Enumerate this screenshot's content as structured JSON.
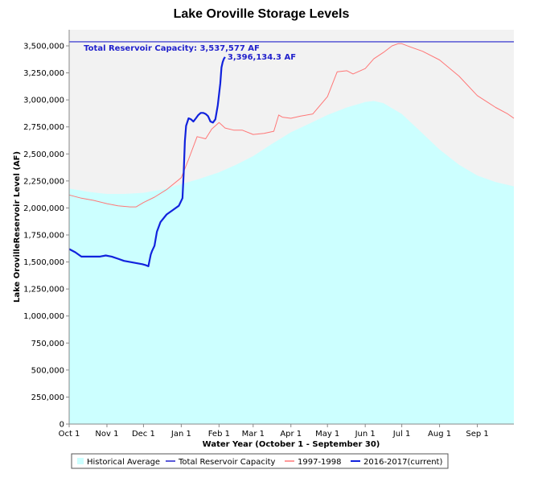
{
  "chart_data": {
    "type": "area",
    "title": "Lake Oroville Storage Levels",
    "xlabel": "Water Year (October 1 - September 30)",
    "ylabel": "Lake OrovilleReservoir Level (AF)",
    "x_unit": "day of water year (0 = Oct 1)",
    "xlim": [
      0,
      365
    ],
    "ylim": [
      0,
      3500000
    ],
    "y_ticks": [
      0,
      250000,
      500000,
      750000,
      1000000,
      1250000,
      1500000,
      1750000,
      2000000,
      2250000,
      2500000,
      2750000,
      3000000,
      3250000,
      3500000
    ],
    "y_tick_labels": [
      "0",
      "250,000",
      "500,000",
      "750,000",
      "1,000,000",
      "1,250,000",
      "1,500,000",
      "1,750,000",
      "2,000,000",
      "2,250,000",
      "2,500,000",
      "2,750,000",
      "3,000,000",
      "3,250,000",
      "3,500,000"
    ],
    "x_ticks": [
      {
        "day": 0,
        "label": "Oct 1"
      },
      {
        "day": 31,
        "label": "Nov 1"
      },
      {
        "day": 61,
        "label": "Dec 1"
      },
      {
        "day": 92,
        "label": "Jan 1"
      },
      {
        "day": 123,
        "label": "Feb 1"
      },
      {
        "day": 151,
        "label": "Mar 1"
      },
      {
        "day": 182,
        "label": "Apr 1"
      },
      {
        "day": 212,
        "label": "May 1"
      },
      {
        "day": 243,
        "label": "Jun 1"
      },
      {
        "day": 273,
        "label": "Jul 1"
      },
      {
        "day": 304,
        "label": "Aug 1"
      },
      {
        "day": 335,
        "label": "Sep 1"
      }
    ],
    "legend_position": "bottom",
    "series": [
      {
        "name": "Historical Average",
        "kind": "area",
        "color": "#ccffff",
        "x": [
          0,
          15,
          31,
          45,
          61,
          76,
          92,
          107,
          123,
          137,
          151,
          166,
          182,
          197,
          212,
          228,
          243,
          250,
          258,
          273,
          289,
          304,
          320,
          335,
          350,
          365
        ],
        "y": [
          2180000,
          2150000,
          2130000,
          2130000,
          2140000,
          2170000,
          2220000,
          2270000,
          2330000,
          2400000,
          2480000,
          2590000,
          2700000,
          2780000,
          2860000,
          2930000,
          2980000,
          2990000,
          2970000,
          2870000,
          2700000,
          2540000,
          2400000,
          2300000,
          2240000,
          2200000
        ]
      },
      {
        "name": "Total Reservoir Capacity",
        "kind": "line",
        "color": "#2222cc",
        "value": 3537577
      },
      {
        "name": "1997-1998",
        "kind": "line",
        "color": "#ff7777",
        "x": [
          0,
          10,
          20,
          31,
          40,
          50,
          55,
          61,
          70,
          80,
          92,
          98,
          105,
          112,
          117,
          123,
          128,
          135,
          142,
          151,
          160,
          168,
          172,
          175,
          182,
          190,
          200,
          212,
          220,
          228,
          233,
          243,
          250,
          258,
          265,
          270,
          273,
          280,
          290,
          304,
          320,
          335,
          350,
          360,
          365
        ],
        "y": [
          2120000,
          2090000,
          2070000,
          2040000,
          2020000,
          2010000,
          2010000,
          2050000,
          2100000,
          2170000,
          2280000,
          2450000,
          2660000,
          2640000,
          2730000,
          2790000,
          2740000,
          2720000,
          2720000,
          2680000,
          2690000,
          2710000,
          2860000,
          2840000,
          2830000,
          2850000,
          2870000,
          3030000,
          3260000,
          3270000,
          3240000,
          3290000,
          3380000,
          3440000,
          3500000,
          3520000,
          3520000,
          3490000,
          3450000,
          3370000,
          3220000,
          3040000,
          2930000,
          2870000,
          2830000
        ]
      },
      {
        "name": "2016-2017(current)",
        "kind": "line",
        "color": "#1122dd",
        "x": [
          0,
          5,
          10,
          15,
          20,
          25,
          30,
          35,
          40,
          45,
          50,
          55,
          60,
          63,
          65,
          67,
          68,
          70,
          72,
          75,
          80,
          85,
          90,
          93,
          94,
          95,
          96,
          98,
          100,
          102,
          104,
          106,
          108,
          110,
          112,
          114,
          116,
          118,
          120,
          122,
          124,
          125,
          126,
          127,
          128
        ],
        "y": [
          1620000,
          1590000,
          1550000,
          1550000,
          1550000,
          1550000,
          1560000,
          1550000,
          1530000,
          1510000,
          1500000,
          1490000,
          1480000,
          1470000,
          1460000,
          1570000,
          1600000,
          1650000,
          1780000,
          1870000,
          1940000,
          1980000,
          2020000,
          2090000,
          2320000,
          2620000,
          2760000,
          2830000,
          2820000,
          2800000,
          2830000,
          2860000,
          2880000,
          2880000,
          2870000,
          2850000,
          2800000,
          2790000,
          2820000,
          2950000,
          3150000,
          3300000,
          3350000,
          3380000,
          3396134
        ]
      }
    ],
    "annotations": [
      {
        "text": "Total Reservoir Capacity: 3,537,577 AF",
        "x": 12,
        "y": 3537577
      },
      {
        "text": "3,396,134.3 AF",
        "x": 128,
        "y": 3396134
      }
    ]
  }
}
